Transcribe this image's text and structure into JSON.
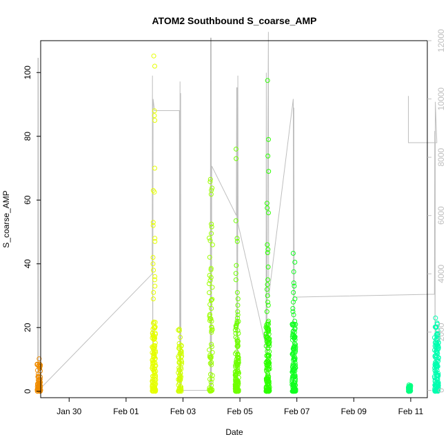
{
  "chart_data": {
    "type": "scatter",
    "title": "ATOM2 Southbound S_coarse_AMP",
    "xlabel": "Date",
    "ylabel": "S_coarse_AMP",
    "x_ticks": [
      "Jan 30",
      "Feb 01",
      "Feb 03",
      "Feb 05",
      "Feb 07",
      "Feb 09",
      "Feb 11"
    ],
    "y_ticks": [
      "0",
      "20",
      "40",
      "60",
      "80",
      "100"
    ],
    "y_right_ticks": [
      "0",
      "2000",
      "4000",
      "6000",
      "8000",
      "10000",
      "12000"
    ],
    "xlim": [
      "2024-01-29 00:00",
      "2024-02-11 14:00"
    ],
    "ylim": [
      -2,
      110
    ],
    "y_right_lim": [
      -250,
      12000
    ],
    "grid": false,
    "legend": "none",
    "point_marker": "open circle",
    "colors": {
      "jan28": "#f08c00",
      "feb01": "#e6ff00",
      "feb02": "#d0ff00",
      "feb03": "#9cff00",
      "feb04": "#6eff00",
      "feb05": "#2cff00",
      "feb06": "#10ff20",
      "feb10": "#00ff80",
      "feb11": "#00ffb0",
      "line": "#bebebe"
    },
    "clusters": [
      {
        "day": "2024-01-28",
        "t_start": "2024-01-28 21:00",
        "t_end": "2024-01-29 00:00",
        "color": "jan28",
        "outliers": [
          10.2,
          7.2,
          4.5,
          3.8,
          3.5
        ]
      },
      {
        "day": "2024-02-01",
        "t_start": "2024-02-01 22:00",
        "t_end": "2024-02-02 01:00",
        "color": "feb01",
        "outliers": [
          105.2,
          102.0,
          88.0,
          86.5,
          85.0,
          70.0,
          63.0,
          62.5,
          53.0,
          52.0,
          48.0,
          47.0,
          42.0,
          40.0,
          38.0,
          36.0,
          35.0,
          33.0,
          31.0,
          29.0
        ]
      },
      {
        "day": "2024-02-02",
        "t_start": "2024-02-02 20:00",
        "t_end": "2024-02-02 23:00",
        "color": "feb02",
        "outliers": [
          19.5,
          19.0,
          15.0,
          13.5
        ]
      },
      {
        "day": "2024-02-03",
        "t_start": "2024-02-03 22:00",
        "t_end": "2024-02-04 01:00",
        "color": "feb03",
        "outliers": [
          66.5,
          28.5,
          26.0,
          24.0,
          22.0,
          20.0,
          18.5
        ]
      },
      {
        "day": "2024-02-04",
        "t_start": "2024-02-04 20:00",
        "t_end": "2024-02-04 23:00",
        "color": "feb04",
        "outliers": [
          76.0,
          73.0,
          53.5,
          48.0,
          47.0,
          39.5,
          37.0,
          35.0,
          31.0,
          29.0,
          27.0,
          25.0,
          24.0,
          23.0,
          22.0,
          21.5,
          20.0
        ]
      },
      {
        "day": "2024-02-05",
        "t_start": "2024-02-05 22:00",
        "t_end": "2024-02-06 01:00",
        "color": "feb05",
        "outliers": [
          97.5,
          79.0,
          73.8,
          69.0,
          59.0,
          57.5,
          56.0,
          46.0,
          44.5,
          43.5,
          39.0,
          35.0,
          33.5,
          32.0,
          30.0,
          28.0,
          27.0,
          25.0,
          22.0,
          20.0,
          19.0,
          17.0,
          15.0,
          13.5
        ]
      },
      {
        "day": "2024-02-06",
        "t_start": "2024-02-06 20:00",
        "t_end": "2024-02-06 23:00",
        "color": "feb06",
        "outliers": [
          43.3,
          40.5,
          37.5,
          34.0,
          33.0,
          31.0,
          29.0,
          28.0,
          26.0,
          25.0,
          24.0,
          21.0,
          19.0,
          17.0,
          14.0,
          12.0,
          10.0
        ]
      },
      {
        "day": "2024-02-10",
        "t_start": "2024-02-10 22:00",
        "t_end": "2024-02-11 00:00",
        "color": "feb10",
        "outliers": [
          2.0,
          1.5
        ]
      },
      {
        "day": "2024-02-11",
        "t_start": "2024-02-11 20:00",
        "t_end": "2024-02-11 23:30",
        "color": "feb11",
        "outliers": [
          23.0,
          16.0,
          15.0,
          14.0,
          12.0,
          11.0,
          10.0,
          9.0,
          8.0,
          7.0,
          6.0
        ]
      }
    ],
    "secondary_line": {
      "axis": "right",
      "points": [
        [
          "2024-01-28 21:30",
          0
        ],
        [
          "2024-01-28 21:45",
          11400
        ],
        [
          "2024-01-28 22:00",
          11400
        ],
        [
          "2024-01-28 22:15",
          0
        ],
        [
          "2024-02-01 22:00",
          4000
        ],
        [
          "2024-02-01 22:15",
          10800
        ],
        [
          "2024-02-01 22:30",
          0
        ],
        [
          "2024-02-01 22:45",
          10000
        ],
        [
          "2024-02-02 00:00",
          9600
        ],
        [
          "2024-02-02 21:00",
          9600
        ],
        [
          "2024-02-02 21:15",
          0
        ],
        [
          "2024-02-02 21:30",
          10600
        ],
        [
          "2024-02-02 21:45",
          0
        ],
        [
          "2024-02-02 22:00",
          10200
        ],
        [
          "2024-02-02 22:15",
          0
        ],
        [
          "2024-02-03 23:00",
          0
        ],
        [
          "2024-02-03 23:15",
          12100
        ],
        [
          "2024-02-03 23:30",
          0
        ],
        [
          "2024-02-03 23:45",
          12100
        ],
        [
          "2024-02-04 00:00",
          0
        ],
        [
          "2024-02-04 00:15",
          7700
        ],
        [
          "2024-02-04 21:00",
          6000
        ],
        [
          "2024-02-04 21:15",
          10400
        ],
        [
          "2024-02-04 21:30",
          0
        ],
        [
          "2024-02-04 21:45",
          10400
        ],
        [
          "2024-02-04 22:00",
          0
        ],
        [
          "2024-02-04 22:15",
          10800
        ],
        [
          "2024-02-04 22:30",
          5700
        ],
        [
          "2024-02-05 22:00",
          1500
        ],
        [
          "2024-02-05 22:15",
          10900
        ],
        [
          "2024-02-05 22:30",
          0
        ],
        [
          "2024-02-06 00:00",
          12300
        ],
        [
          "2024-02-06 00:15",
          3200
        ],
        [
          "2024-02-06 21:00",
          10000
        ],
        [
          "2024-02-06 21:15",
          0
        ],
        [
          "2024-02-06 21:30",
          9700
        ],
        [
          "2024-02-06 21:45",
          3200
        ],
        [
          "2024-02-11 20:00",
          3300
        ],
        [
          "2024-02-11 20:15",
          8900
        ],
        [
          "2024-02-11 20:30",
          0
        ],
        [
          "2024-02-11 20:45",
          9900
        ],
        [
          "2024-02-11 22:00",
          8500
        ],
        [
          "2024-02-10 22:00",
          8500
        ],
        [
          "2024-02-10 22:00",
          10100
        ]
      ]
    }
  }
}
